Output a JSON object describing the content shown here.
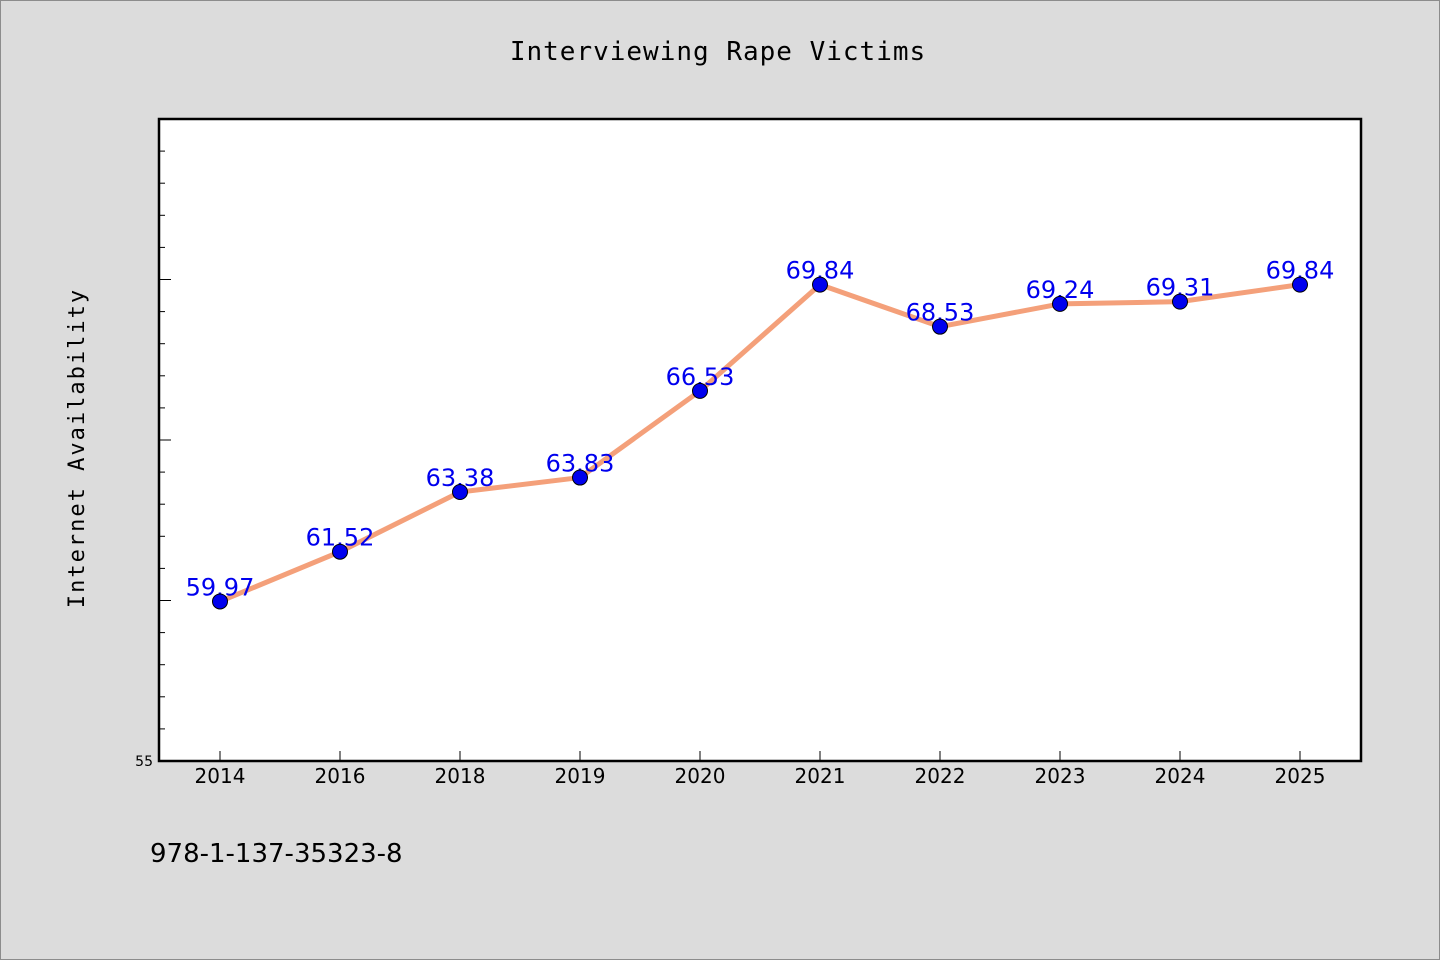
{
  "chart_data": {
    "type": "line",
    "title": "Interviewing Rape Victims",
    "ylabel": "Internet Availability",
    "xlabel": "",
    "categories": [
      "2014",
      "2016",
      "2018",
      "2019",
      "2020",
      "2021",
      "2022",
      "2023",
      "2024",
      "2025"
    ],
    "values": [
      59.97,
      61.52,
      63.38,
      63.83,
      66.53,
      69.84,
      68.53,
      69.24,
      69.31,
      69.84
    ],
    "data_labels": [
      "59.97",
      "61.52",
      "63.38",
      "63.83",
      "66.53",
      "69.84",
      "68.53",
      "69.24",
      "69.31",
      "69.84"
    ],
    "ylim": [
      55,
      75
    ],
    "y_tick_labels": [
      "55"
    ],
    "grid": false,
    "legend": "none",
    "line_color": "#f4a07a",
    "marker_color": "#0000ee",
    "label_color": "#0000ee"
  },
  "footer": {
    "isbn": "978-1-137-35323-8"
  }
}
